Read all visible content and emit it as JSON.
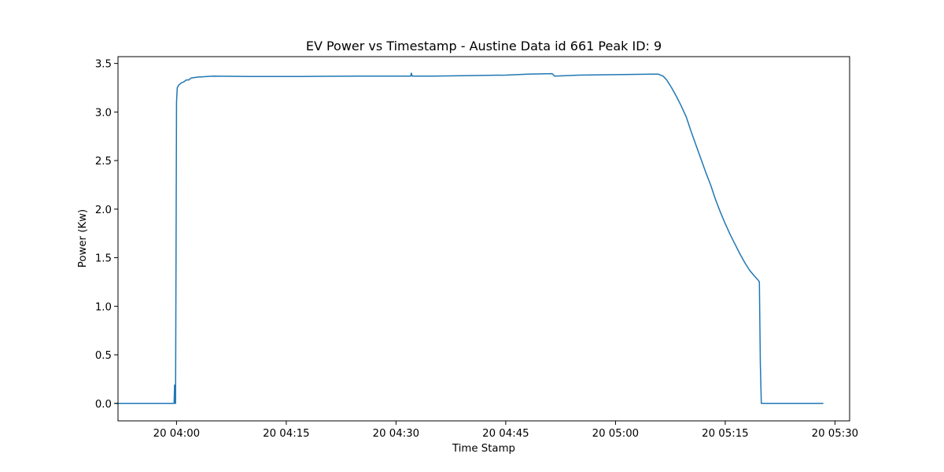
{
  "chart_data": {
    "type": "line",
    "title": "EV Power vs Timestamp - Austine Data id 661 Peak ID: 9",
    "xlabel": "Time Stamp",
    "ylabel": "Power (Kw)",
    "x_unit": "HH:MM (day 20)",
    "xlim": [
      "03:52",
      "05:32"
    ],
    "ylim": [
      -0.18,
      3.57
    ],
    "x_ticks": [
      {
        "value": "04:00",
        "label": "20 04:00"
      },
      {
        "value": "04:15",
        "label": "20 04:15"
      },
      {
        "value": "04:30",
        "label": "20 04:30"
      },
      {
        "value": "04:45",
        "label": "20 04:45"
      },
      {
        "value": "05:00",
        "label": "20 05:00"
      },
      {
        "value": "05:15",
        "label": "20 05:15"
      },
      {
        "value": "05:30",
        "label": "20 05:30"
      }
    ],
    "y_ticks": [
      {
        "value": 0.0,
        "label": "0.0"
      },
      {
        "value": 0.5,
        "label": "0.5"
      },
      {
        "value": 1.0,
        "label": "1.0"
      },
      {
        "value": 1.5,
        "label": "1.5"
      },
      {
        "value": 2.0,
        "label": "2.0"
      },
      {
        "value": 2.5,
        "label": "2.5"
      },
      {
        "value": 3.0,
        "label": "3.0"
      },
      {
        "value": 3.5,
        "label": "3.5"
      }
    ],
    "grid": false,
    "legend": "none",
    "series": [
      {
        "color": "#1f77b4",
        "points": [
          [
            "03:51:40",
            0.0
          ],
          [
            "03:55:00",
            0.0
          ],
          [
            "03:59:40",
            0.0
          ],
          [
            "03:59:44",
            0.19
          ],
          [
            "03:59:46",
            0.0
          ],
          [
            "03:59:52",
            0.0
          ],
          [
            "03:59:56",
            1.5
          ],
          [
            "04:00:00",
            3.1
          ],
          [
            "04:00:06",
            3.25
          ],
          [
            "04:00:20",
            3.28
          ],
          [
            "04:00:40",
            3.3
          ],
          [
            "04:01:00",
            3.31
          ],
          [
            "04:01:20",
            3.33
          ],
          [
            "04:01:40",
            3.33
          ],
          [
            "04:02:00",
            3.35
          ],
          [
            "04:03:00",
            3.36
          ],
          [
            "04:05:00",
            3.37
          ],
          [
            "04:10:00",
            3.365
          ],
          [
            "04:15:00",
            3.365
          ],
          [
            "04:20:00",
            3.367
          ],
          [
            "04:25:00",
            3.37
          ],
          [
            "04:30:00",
            3.37
          ],
          [
            "04:32:00",
            3.37
          ],
          [
            "04:32:06",
            3.4
          ],
          [
            "04:32:12",
            3.37
          ],
          [
            "04:35:00",
            3.37
          ],
          [
            "04:40:00",
            3.375
          ],
          [
            "04:45:00",
            3.38
          ],
          [
            "04:48:00",
            3.39
          ],
          [
            "04:51:20",
            3.395
          ],
          [
            "04:51:40",
            3.37
          ],
          [
            "04:55:00",
            3.38
          ],
          [
            "05:00:00",
            3.385
          ],
          [
            "05:05:00",
            3.39
          ],
          [
            "05:05:50",
            3.39
          ],
          [
            "05:06:30",
            3.37
          ],
          [
            "05:07:00",
            3.33
          ],
          [
            "05:07:40",
            3.25
          ],
          [
            "05:08:20",
            3.16
          ],
          [
            "05:09:00",
            3.06
          ],
          [
            "05:09:40",
            2.95
          ],
          [
            "05:10:20",
            2.8
          ],
          [
            "05:11:00",
            2.66
          ],
          [
            "05:11:40",
            2.52
          ],
          [
            "05:12:20",
            2.38
          ],
          [
            "05:13:00",
            2.25
          ],
          [
            "05:13:40",
            2.1
          ],
          [
            "05:14:20",
            1.97
          ],
          [
            "05:15:00",
            1.85
          ],
          [
            "05:15:40",
            1.74
          ],
          [
            "05:16:20",
            1.64
          ],
          [
            "05:17:00",
            1.54
          ],
          [
            "05:17:40",
            1.45
          ],
          [
            "05:18:20",
            1.37
          ],
          [
            "05:19:00",
            1.31
          ],
          [
            "05:19:30",
            1.27
          ],
          [
            "05:19:40",
            1.25
          ],
          [
            "05:19:48",
            0.4
          ],
          [
            "05:19:56",
            0.0
          ],
          [
            "05:25:00",
            0.0
          ],
          [
            "05:28:20",
            0.0
          ]
        ]
      }
    ]
  }
}
